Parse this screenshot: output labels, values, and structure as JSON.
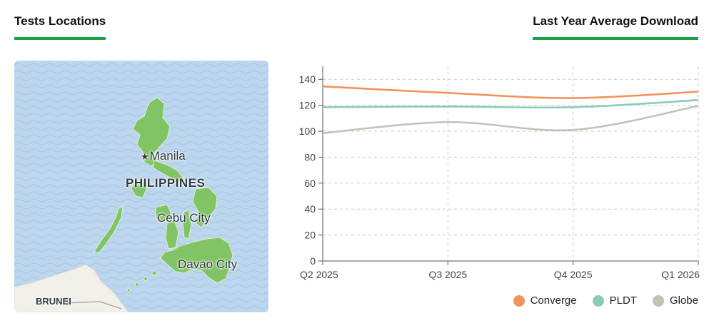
{
  "sections": {
    "tests_locations": "Tests Locations",
    "average_download": "Last Year Average Download"
  },
  "map": {
    "labels": {
      "manila": "Manila",
      "philippines": "PHILIPPINES",
      "cebu": "Cebu City",
      "davao": "Davao City",
      "brunei": "BRUNEI"
    },
    "colors": {
      "water": "#bcd6ee",
      "land": "#f3f0ea",
      "coverage": "#7cc35a"
    }
  },
  "chart_data": {
    "type": "line",
    "title": "Last Year Average Download",
    "categories": [
      "Q2 2025",
      "Q3 2025",
      "Q4 2025",
      "Q1 2026"
    ],
    "series": [
      {
        "name": "Converge",
        "color": "#f0945a",
        "values": [
          134.5,
          129.5,
          125.5,
          130.5
        ]
      },
      {
        "name": "PLDT",
        "color": "#8ccbb4",
        "values": [
          118.5,
          119.0,
          118.5,
          124.0
        ]
      },
      {
        "name": "Globe",
        "color": "#c2c3b2",
        "values": [
          98.5,
          107.0,
          101.0,
          119.5
        ]
      }
    ],
    "ylim": [
      0,
      150
    ],
    "yticks": [
      0,
      20,
      40,
      60,
      80,
      100,
      120,
      140
    ],
    "grid": true,
    "legend": "bottom-right",
    "xlabel": "",
    "ylabel": ""
  }
}
